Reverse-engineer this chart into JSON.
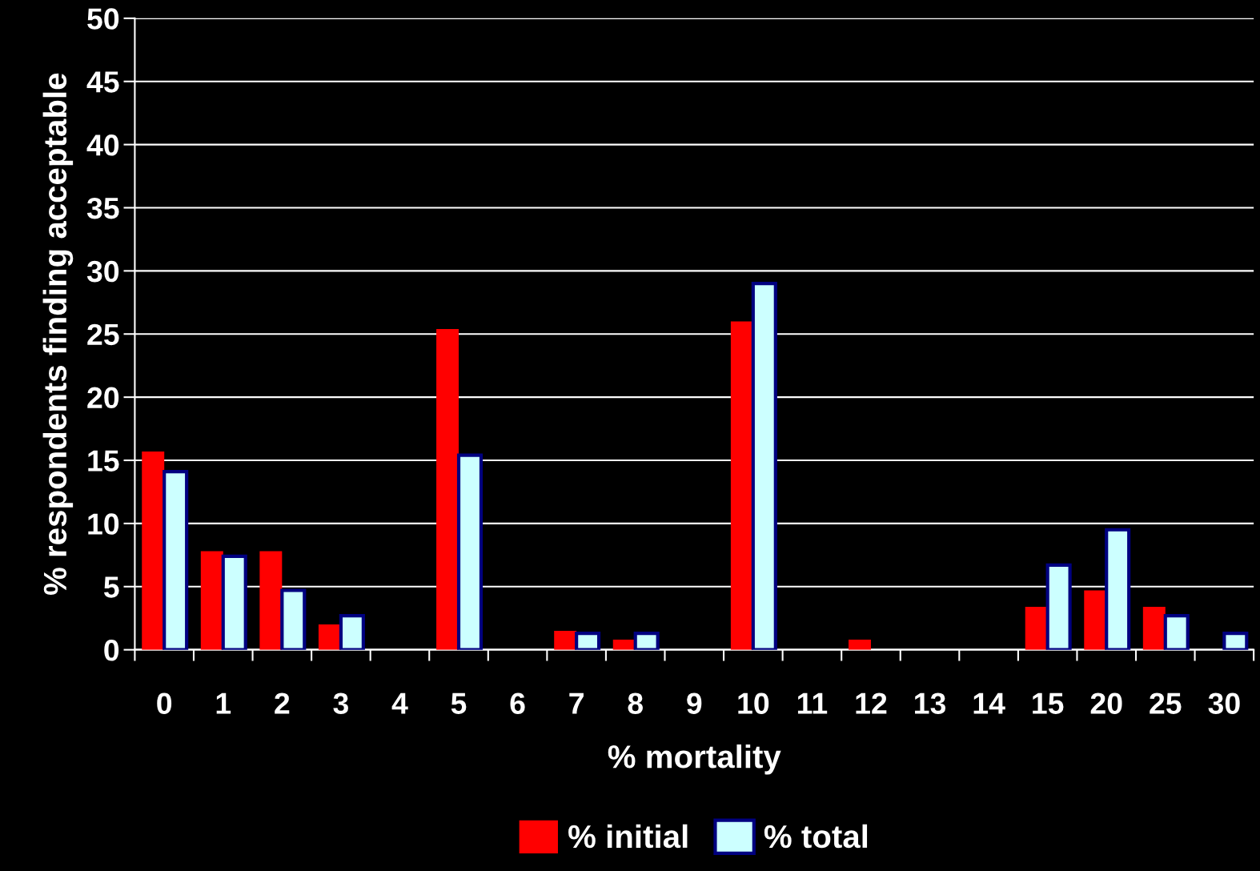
{
  "chart_data": {
    "type": "bar",
    "xlabel": "% mortality",
    "ylabel": "% respondents finding acceptable",
    "categories": [
      "0",
      "1",
      "2",
      "3",
      "4",
      "5",
      "6",
      "7",
      "8",
      "9",
      "10",
      "11",
      "12",
      "13",
      "14",
      "15",
      "20",
      "25",
      "30"
    ],
    "series": [
      {
        "name": "% initial",
        "color": "#ff0000",
        "values": [
          15.7,
          7.8,
          7.8,
          2.0,
          null,
          25.4,
          null,
          1.5,
          0.8,
          null,
          26.0,
          null,
          0.8,
          null,
          null,
          3.4,
          4.7,
          3.4,
          null
        ]
      },
      {
        "name": "% total",
        "color": "#ccffff",
        "values": [
          14.1,
          7.4,
          4.7,
          2.7,
          null,
          15.4,
          null,
          1.3,
          1.3,
          null,
          29.0,
          null,
          null,
          null,
          null,
          6.7,
          9.5,
          2.7,
          1.3
        ]
      }
    ],
    "ylim": [
      0,
      50
    ],
    "yticks": [
      0,
      5,
      10,
      15,
      20,
      25,
      30,
      35,
      40,
      45,
      50
    ],
    "grid": "y",
    "legend": "bottom"
  }
}
